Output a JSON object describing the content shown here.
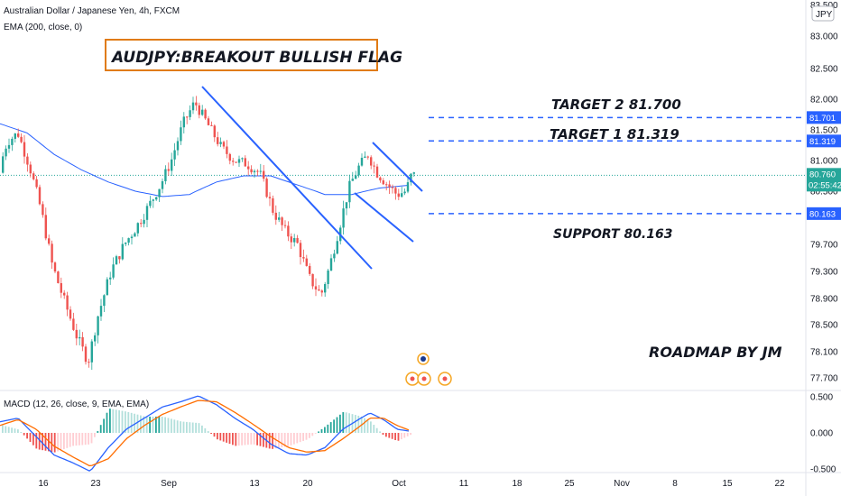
{
  "header": {
    "symbol_line": "Australian Dollar / Japanese Yen, 4h, FXCM",
    "ema_line": "EMA (200, close, 0)",
    "currency": "JPY",
    "top_price_partial": "83.500"
  },
  "macd_panel": {
    "label": "MACD (12, 26, close, 9, EMA, EMA)"
  },
  "annotations": {
    "title": "AUDJPY:BREAKOUT BULLISH FLAG",
    "target2": "TARGET 2  81.700",
    "target1": "TARGET 1  81.319",
    "support": "SUPPORT 80.163",
    "signature": "ROADMAP BY JM"
  },
  "price_tags": {
    "target2": "81.701",
    "target1": "81.319",
    "current": "80.760",
    "countdown": "02:55:42",
    "support": "80.163"
  },
  "colors": {
    "up": "#26a69a",
    "down": "#ef5350",
    "trendline": "#2962ff",
    "ema": "#2962ff",
    "macd": "#2962ff",
    "signal": "#ff6d00",
    "title_border": "#e07b14",
    "event_icon": "#f5a623"
  },
  "chart_data": {
    "type": "candlestick",
    "title": "AUDJPY:BREAKOUT BULLISH FLAG",
    "price_axis": {
      "ticks": [
        "83.000",
        "82.500",
        "82.000",
        "81.500",
        "81.000",
        "80.500",
        "79.700",
        "79.300",
        "78.900",
        "78.500",
        "78.100",
        "77.700"
      ],
      "ylim": [
        77.5,
        83.5
      ]
    },
    "time_axis": {
      "ticks": [
        "16",
        "23",
        "Sep",
        "13",
        "20",
        "Oct",
        "11",
        "18",
        "25",
        "Nov",
        "8",
        "15",
        "22"
      ]
    },
    "macd_axis": {
      "ticks": [
        "0.500",
        "0.000",
        "-0.500"
      ],
      "ylim": [
        -0.55,
        0.55
      ]
    },
    "levels": [
      {
        "name": "TARGET 2",
        "value": 81.701
      },
      {
        "name": "TARGET 1",
        "value": 81.319
      },
      {
        "name": "SUPPORT",
        "value": 80.163
      }
    ],
    "current_price": 80.76,
    "price_path": [
      [
        0,
        80.8
      ],
      [
        10,
        81.3
      ],
      [
        22,
        81.45
      ],
      [
        35,
        80.9
      ],
      [
        48,
        80.2
      ],
      [
        60,
        79.4
      ],
      [
        75,
        78.8
      ],
      [
        88,
        78.3
      ],
      [
        100,
        77.95
      ],
      [
        110,
        78.6
      ],
      [
        125,
        79.3
      ],
      [
        140,
        79.7
      ],
      [
        155,
        80.0
      ],
      [
        168,
        80.3
      ],
      [
        180,
        80.6
      ],
      [
        192,
        81.0
      ],
      [
        205,
        81.6
      ],
      [
        218,
        81.95
      ],
      [
        232,
        81.6
      ],
      [
        248,
        81.2
      ],
      [
        262,
        81.0
      ],
      [
        275,
        80.95
      ],
      [
        290,
        80.8
      ],
      [
        305,
        80.2
      ],
      [
        318,
        79.9
      ],
      [
        332,
        79.7
      ],
      [
        345,
        79.2
      ],
      [
        358,
        78.95
      ],
      [
        368,
        79.4
      ],
      [
        378,
        79.95
      ],
      [
        390,
        80.6
      ],
      [
        400,
        80.9
      ],
      [
        410,
        81.1
      ],
      [
        420,
        80.8
      ],
      [
        432,
        80.6
      ],
      [
        442,
        80.45
      ],
      [
        452,
        80.5
      ],
      [
        458,
        80.76
      ]
    ],
    "macd_line": [
      [
        0,
        0.15
      ],
      [
        20,
        0.2
      ],
      [
        40,
        -0.05
      ],
      [
        60,
        -0.3
      ],
      [
        80,
        -0.4
      ],
      [
        100,
        -0.52
      ],
      [
        120,
        -0.2
      ],
      [
        140,
        0.05
      ],
      [
        160,
        0.2
      ],
      [
        180,
        0.35
      ],
      [
        200,
        0.42
      ],
      [
        220,
        0.5
      ],
      [
        240,
        0.38
      ],
      [
        260,
        0.2
      ],
      [
        280,
        0.05
      ],
      [
        300,
        -0.15
      ],
      [
        320,
        -0.28
      ],
      [
        340,
        -0.3
      ],
      [
        360,
        -0.2
      ],
      [
        380,
        0.05
      ],
      [
        400,
        0.2
      ],
      [
        410,
        0.27
      ],
      [
        425,
        0.18
      ],
      [
        440,
        0.05
      ],
      [
        455,
        0.02
      ]
    ],
    "signal_line": [
      [
        0,
        0.1
      ],
      [
        20,
        0.18
      ],
      [
        40,
        0.05
      ],
      [
        60,
        -0.18
      ],
      [
        80,
        -0.32
      ],
      [
        100,
        -0.45
      ],
      [
        120,
        -0.35
      ],
      [
        140,
        -0.08
      ],
      [
        160,
        0.1
      ],
      [
        180,
        0.25
      ],
      [
        200,
        0.35
      ],
      [
        220,
        0.44
      ],
      [
        240,
        0.42
      ],
      [
        260,
        0.28
      ],
      [
        280,
        0.12
      ],
      [
        300,
        -0.05
      ],
      [
        320,
        -0.2
      ],
      [
        340,
        -0.26
      ],
      [
        360,
        -0.24
      ],
      [
        380,
        -0.08
      ],
      [
        400,
        0.1
      ],
      [
        410,
        0.2
      ],
      [
        425,
        0.2
      ],
      [
        440,
        0.1
      ],
      [
        455,
        0.03
      ]
    ],
    "ema_path": [
      [
        0,
        81.6
      ],
      [
        30,
        81.45
      ],
      [
        60,
        81.1
      ],
      [
        90,
        80.85
      ],
      [
        120,
        80.65
      ],
      [
        150,
        80.5
      ],
      [
        180,
        80.42
      ],
      [
        210,
        80.45
      ],
      [
        240,
        80.65
      ],
      [
        270,
        80.75
      ],
      [
        300,
        80.75
      ],
      [
        330,
        80.6
      ],
      [
        360,
        80.45
      ],
      [
        390,
        80.45
      ],
      [
        420,
        80.55
      ],
      [
        455,
        80.6
      ]
    ]
  }
}
